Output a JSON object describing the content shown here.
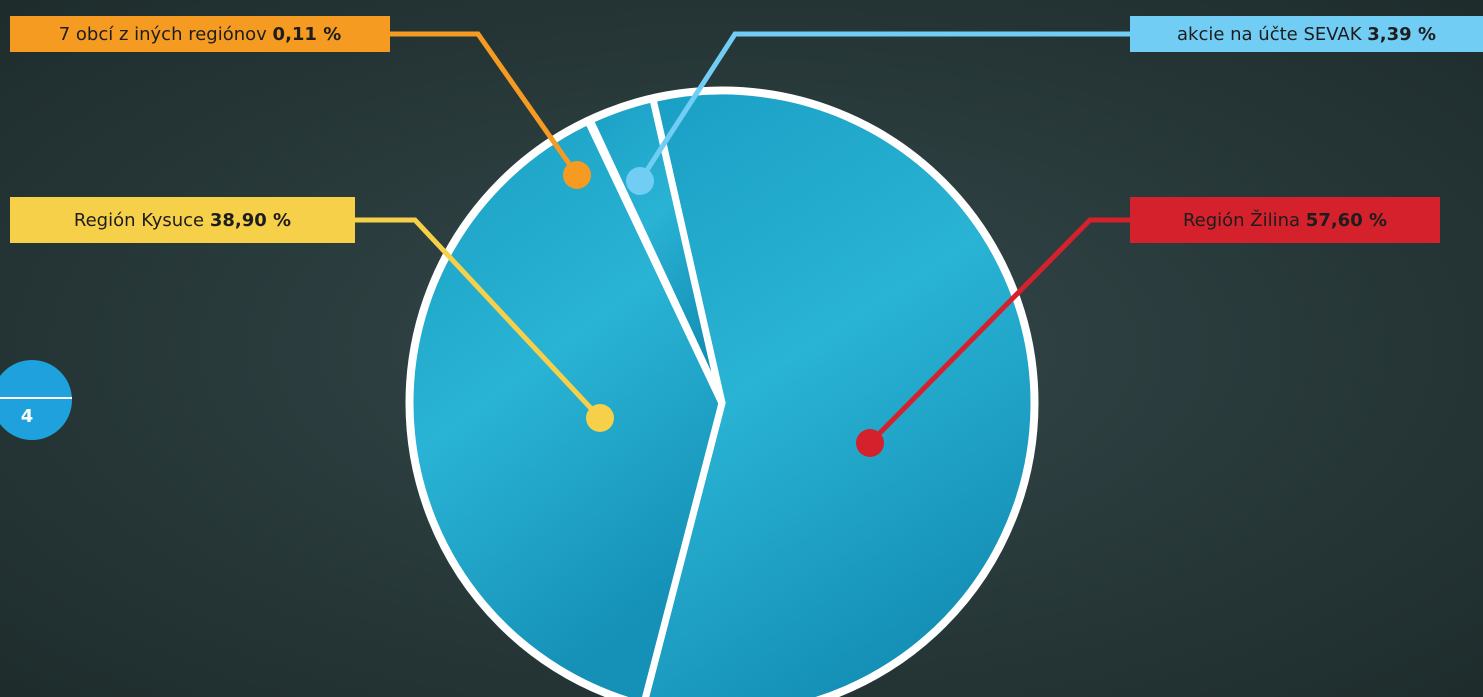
{
  "page_number": "4",
  "chart_data": {
    "type": "pie",
    "categories": [
      "Región Žilina",
      "Región Kysuce",
      "7 obcí z iných regiónov",
      "akcie na účte SEVAK"
    ],
    "values": [
      57.6,
      38.9,
      0.11,
      3.39
    ],
    "value_labels": [
      "57,60 %",
      "38,90 %",
      "0,11 %",
      "3,39 %"
    ],
    "colors": [
      "#d4212b",
      "#f7d04a",
      "#f59b21",
      "#72cdf4"
    ]
  }
}
